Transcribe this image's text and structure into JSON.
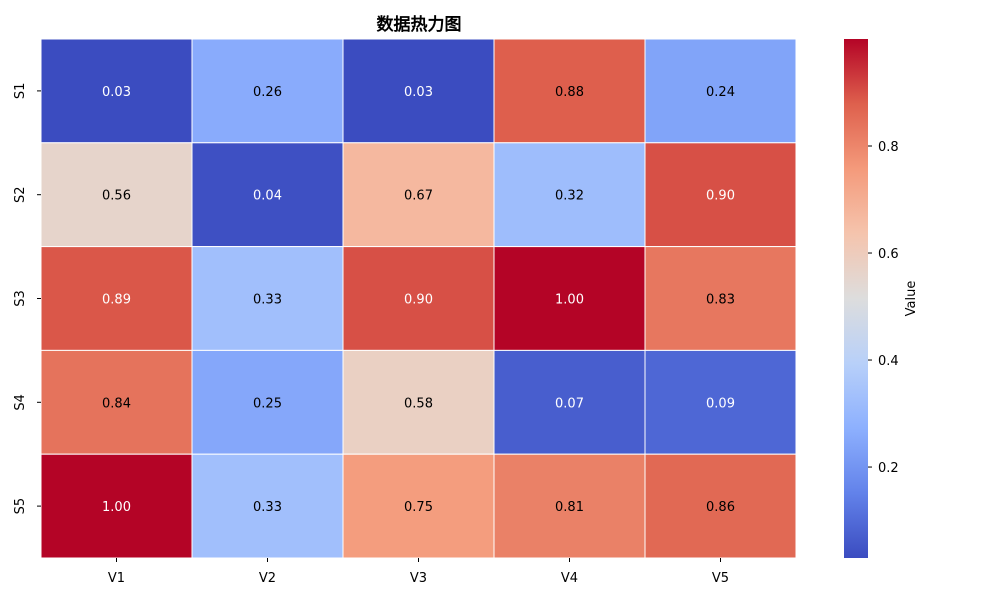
{
  "chart_data": {
    "type": "heatmap",
    "title": "数据热力图",
    "xlabel": "",
    "ylabel": "",
    "x_categories": [
      "V1",
      "V2",
      "V3",
      "V4",
      "V5"
    ],
    "y_categories": [
      "S1",
      "S2",
      "S3",
      "S4",
      "S5"
    ],
    "values": [
      [
        0.03,
        0.26,
        0.03,
        0.88,
        0.24
      ],
      [
        0.56,
        0.04,
        0.67,
        0.32,
        0.9
      ],
      [
        0.89,
        0.33,
        0.9,
        1.0,
        0.83
      ],
      [
        0.84,
        0.25,
        0.58,
        0.07,
        0.09
      ],
      [
        1.0,
        0.33,
        0.75,
        0.81,
        0.86
      ]
    ],
    "value_format": "0.00",
    "colormap": "coolwarm",
    "colorbar": {
      "label": "Value",
      "vmin": 0.03,
      "vmax": 1.0,
      "ticks": [
        0.2,
        0.4,
        0.6,
        0.8
      ]
    },
    "colors": {
      "low": "#3b4cc0",
      "mid": "#dddddd",
      "high": "#b40426",
      "cell_border": "#ffffff",
      "text_dark": "#000000",
      "text_light": "#ffffff"
    }
  }
}
